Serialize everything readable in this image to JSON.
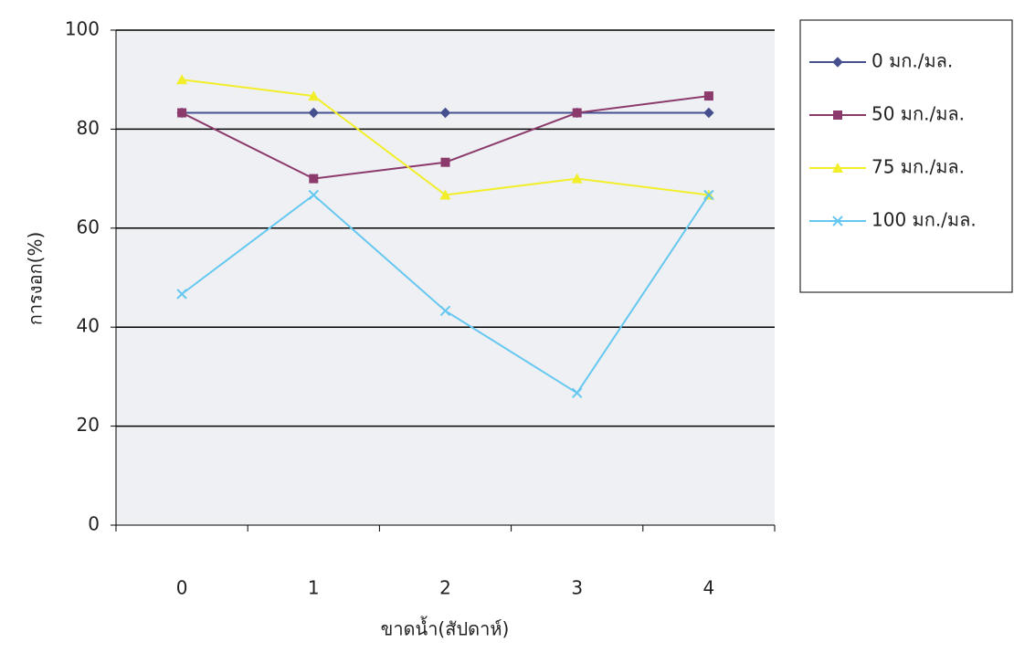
{
  "chart_data": {
    "type": "line",
    "x_label": "ขาดน้ำ(สัปดาห์)",
    "y_label": "การงอก(%)",
    "categories": [
      "0",
      "1",
      "2",
      "3",
      "4"
    ],
    "series": [
      {
        "name": "0  มก./มล.",
        "color": "#46508f",
        "marker": "diamond",
        "values": [
          83.3,
          83.3,
          83.3,
          83.3,
          83.3
        ]
      },
      {
        "name": "50 มก./มล.",
        "color": "#8b3a6b",
        "marker": "square",
        "values": [
          83.3,
          70,
          73.3,
          83.3,
          86.7
        ]
      },
      {
        "name": "75 มก./มล.",
        "color": "#f2ee2a",
        "marker": "triangle",
        "values": [
          90,
          86.7,
          66.7,
          70,
          66.7
        ]
      },
      {
        "name": "100 มก./มล.",
        "color": "#66c8f0",
        "marker": "x",
        "values": [
          46.7,
          66.7,
          43.3,
          26.7,
          66.7
        ]
      }
    ],
    "ylim": [
      0,
      100
    ],
    "yticks": [
      0,
      20,
      40,
      60,
      80,
      100
    ],
    "grid": true,
    "legend": "right"
  }
}
